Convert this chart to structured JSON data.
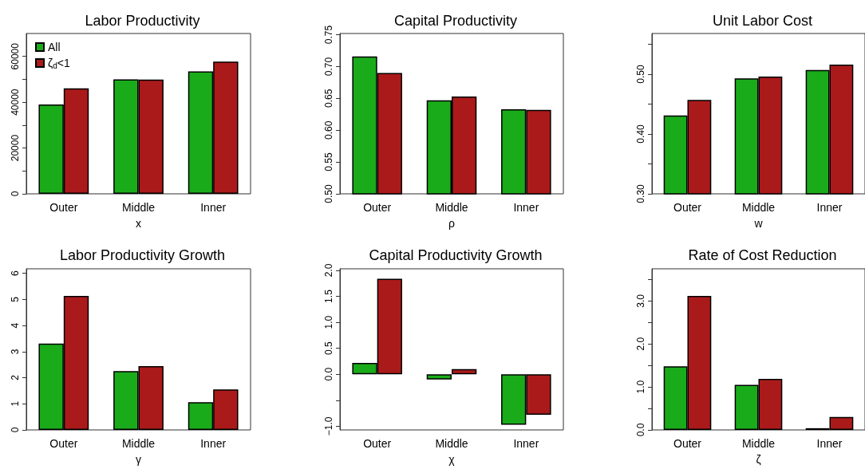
{
  "chart_data": [
    {
      "type": "bar",
      "title": "Labor Productivity",
      "xlabel": "x",
      "categories": [
        "Outer",
        "Middle",
        "Inner"
      ],
      "legend": "top left",
      "series": [
        {
          "name": "All",
          "color": "#1aab1a",
          "values": [
            39000,
            50000,
            53500
          ]
        },
        {
          "name": "ζ$_{d}$<1",
          "color": "#ab1a1a",
          "values": [
            46100,
            49900,
            57700
          ]
        }
      ],
      "ylim": [
        0,
        70000
      ],
      "yticks": [
        0,
        {
          "value": 10000,
          "label": null
        },
        20000,
        {
          "value": 30000,
          "label": null
        },
        40000,
        {
          "value": 50000,
          "label": null
        },
        60000
      ]
    },
    {
      "type": "bar",
      "title": "Capital Productivity",
      "xlabel": "ρ",
      "categories": [
        "Outer",
        "Middle",
        "Inner"
      ],
      "series": [
        {
          "color": "#1aab1a",
          "values": [
            0.716,
            0.647,
            0.633
          ]
        },
        {
          "color": "#ab1a1a",
          "values": [
            0.69,
            0.653,
            0.632
          ]
        }
      ],
      "ylim": [
        0.5,
        0.752
      ],
      "yticks": [
        {
          "value": 0.5,
          "label": "0.50"
        },
        0.55,
        {
          "value": 0.6,
          "label": "0.60"
        },
        0.65,
        {
          "value": 0.7,
          "label": "0.70"
        },
        0.75
      ]
    },
    {
      "type": "bar",
      "title": "Unit Labor Cost",
      "xlabel": "w",
      "categories": [
        "Outer",
        "Middle",
        "Inner"
      ],
      "series": [
        {
          "color": "#1aab1a",
          "values": [
            0.431,
            0.493,
            0.507
          ]
        },
        {
          "color": "#ab1a1a",
          "values": [
            0.457,
            0.496,
            0.516
          ]
        }
      ],
      "ylim": [
        0.3,
        0.568
      ],
      "yticks": [
        {
          "value": 0.3,
          "label": "0.30"
        },
        {
          "value": 0.35,
          "label": null
        },
        {
          "value": 0.4,
          "label": "0.40"
        },
        {
          "value": 0.45,
          "label": null
        },
        {
          "value": 0.5,
          "label": "0.50"
        },
        {
          "value": 0.55,
          "label": null
        }
      ]
    },
    {
      "type": "bar",
      "title": "Labor Productivity Growth",
      "xlabel": "γ",
      "categories": [
        "Outer",
        "Middle",
        "Inner"
      ],
      "series": [
        {
          "color": "#1aab1a",
          "values": [
            3.31,
            2.25,
            1.06
          ]
        },
        {
          "color": "#ab1a1a",
          "values": [
            5.13,
            2.44,
            1.55
          ]
        }
      ],
      "ylim": [
        0,
        6.17
      ],
      "yticks": [
        0,
        1,
        2,
        3,
        4,
        5,
        6
      ]
    },
    {
      "type": "bar",
      "title": "Capital Productivity Growth",
      "xlabel": "χ",
      "categories": [
        "Outer",
        "Middle",
        "Inner"
      ],
      "series": [
        {
          "color": "#1aab1a",
          "values": [
            0.22,
            -0.1,
            -0.97
          ]
        },
        {
          "color": "#ab1a1a",
          "values": [
            1.84,
            0.1,
            -0.78
          ]
        }
      ],
      "ylim": [
        -1.07,
        2.03
      ],
      "yticks": [
        {
          "value": -1,
          "label": "−1.0"
        },
        {
          "value": -0.5,
          "label": null
        },
        {
          "value": 0,
          "label": "0.0"
        },
        0.5,
        {
          "value": 1,
          "label": "1.0"
        },
        1.5,
        {
          "value": 2,
          "label": "2.0"
        }
      ]
    },
    {
      "type": "bar",
      "title": "Rate of Cost Reduction",
      "xlabel": "ζ",
      "categories": [
        "Outer",
        "Middle",
        "Inner"
      ],
      "series": [
        {
          "color": "#1aab1a",
          "values": [
            1.48,
            1.05,
            0.04
          ]
        },
        {
          "color": "#ab1a1a",
          "values": [
            3.12,
            1.19,
            0.3
          ]
        }
      ],
      "ylim": [
        0,
        3.75
      ],
      "yticks": [
        {
          "value": 0,
          "label": "0.0"
        },
        {
          "value": 0.5,
          "label": null
        },
        {
          "value": 1,
          "label": "1.0"
        },
        {
          "value": 1.5,
          "label": null
        },
        {
          "value": 2,
          "label": "2.0"
        },
        {
          "value": 2.5,
          "label": null
        },
        {
          "value": 3,
          "label": "3.0"
        },
        {
          "value": 3.5,
          "label": null
        }
      ]
    }
  ]
}
